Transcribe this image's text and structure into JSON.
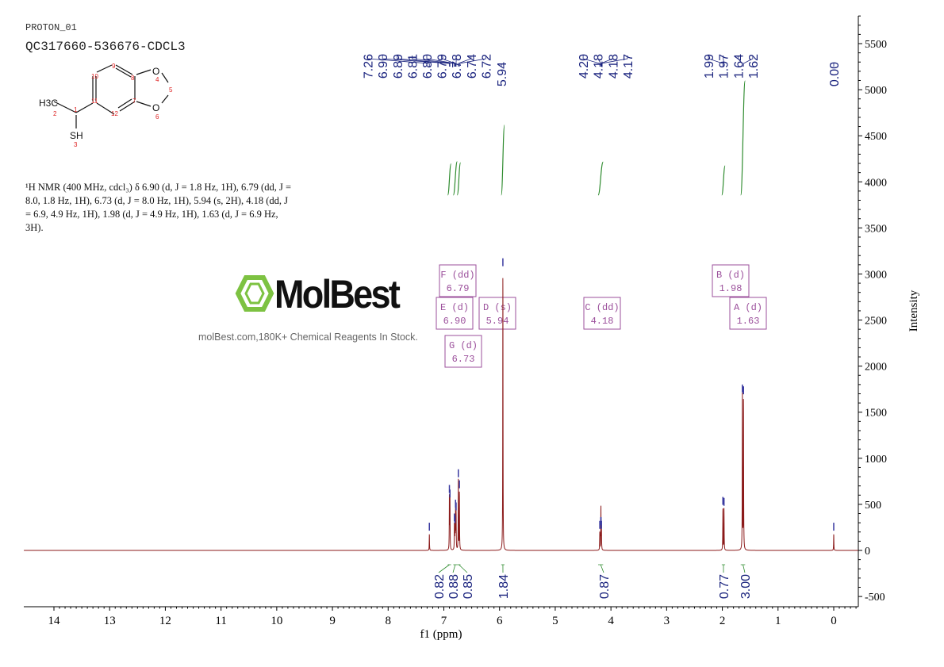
{
  "header": {
    "experiment": "PROTON_01",
    "sample": "QC317660-536676-CDCL3"
  },
  "structure": {
    "atoms": [
      "H3C",
      "2",
      "1",
      "SH",
      "3",
      "10",
      "9",
      "8",
      "11",
      "12",
      "7",
      "O",
      "4",
      "5",
      "O",
      "6"
    ]
  },
  "description": "¹H NMR (400 MHz, cdcl₃) δ 6.90 (d, J = 1.8 Hz, 1H), 6.79 (dd, J = 8.0, 1.8 Hz, 1H), 6.73 (d, J = 8.0 Hz, 1H), 5.94 (s, 2H), 4.18 (dd, J = 6.9, 4.9 Hz, 1H), 1.98 (d, J = 4.9 Hz, 1H), 1.63 (d, J = 6.9 Hz, 3H).",
  "watermark": {
    "logo": "MolBest",
    "tagline": "molBest.com,180K+ Chemical Reagents In Stock.",
    "color": "#7dc242"
  },
  "chart_data": {
    "type": "line",
    "xlabel": "f1 (ppm)",
    "ylabel": "Intensity",
    "xlim": [
      14.54,
      -0.44
    ],
    "ylim": [
      -600,
      5600
    ],
    "x_ticks": [
      14,
      13,
      12,
      11,
      10,
      9,
      8,
      7,
      6,
      5,
      4,
      3,
      2,
      1,
      0
    ],
    "y_ticks": [
      -500,
      0,
      500,
      1000,
      1500,
      2000,
      2500,
      3000,
      3500,
      4000,
      4500,
      5000,
      5500
    ],
    "line_color": "#8b1a1a",
    "peaks": [
      {
        "ppm": 7.26,
        "intensity": 180
      },
      {
        "ppm": 6.9,
        "intensity": 590
      },
      {
        "ppm": 6.89,
        "intensity": 540
      },
      {
        "ppm": 6.81,
        "intensity": 280
      },
      {
        "ppm": 6.8,
        "intensity": 260
      },
      {
        "ppm": 6.79,
        "intensity": 430
      },
      {
        "ppm": 6.78,
        "intensity": 400
      },
      {
        "ppm": 6.74,
        "intensity": 760
      },
      {
        "ppm": 6.72,
        "intensity": 640
      },
      {
        "ppm": 5.94,
        "intensity": 3050
      },
      {
        "ppm": 4.2,
        "intensity": 200
      },
      {
        "ppm": 4.18,
        "intensity": 240
      },
      {
        "ppm": 4.18,
        "intensity": 240
      },
      {
        "ppm": 4.17,
        "intensity": 200
      },
      {
        "ppm": 1.99,
        "intensity": 460
      },
      {
        "ppm": 1.97,
        "intensity": 450
      },
      {
        "ppm": 1.64,
        "intensity": 1680
      },
      {
        "ppm": 1.62,
        "intensity": 1660
      },
      {
        "ppm": 0.0,
        "intensity": 180
      }
    ],
    "peak_labels": [
      {
        "group": [
          7.26,
          6.9,
          6.89,
          6.81,
          6.8,
          6.79,
          6.78,
          6.74,
          6.72
        ],
        "labels": [
          "7.26",
          "6.90",
          "6.89",
          "6.81",
          "6.80",
          "6.79",
          "6.78",
          "6.74",
          "6.72"
        ]
      },
      {
        "group": [
          5.94
        ],
        "labels": [
          "5.94"
        ]
      },
      {
        "group": [
          4.2,
          4.18,
          4.18,
          4.17
        ],
        "labels": [
          "4.20",
          "4.18",
          "4.18",
          "4.17"
        ]
      },
      {
        "group": [
          1.99,
          1.97,
          1.64,
          1.62
        ],
        "labels": [
          "1.99",
          "1.97",
          "1.64",
          "1.62"
        ]
      },
      {
        "group": [
          0.0
        ],
        "labels": [
          "0.00"
        ]
      }
    ],
    "integrals": [
      {
        "from": 6.93,
        "to": 6.87,
        "value": "0.82"
      },
      {
        "from": 6.83,
        "to": 6.76,
        "value": "0.88"
      },
      {
        "from": 6.76,
        "to": 6.7,
        "value": "0.85"
      },
      {
        "from": 5.97,
        "to": 5.91,
        "value": "1.84"
      },
      {
        "from": 4.23,
        "to": 4.14,
        "value": "0.87"
      },
      {
        "from": 2.01,
        "to": 1.95,
        "value": "0.77"
      },
      {
        "from": 1.67,
        "to": 1.59,
        "value": "3.00"
      }
    ],
    "integral_color": "#2e8b2e",
    "multiplets": [
      {
        "id": "F",
        "type": "dd",
        "shift": "6.79"
      },
      {
        "id": "E",
        "type": "d",
        "shift": "6.90"
      },
      {
        "id": "D",
        "type": "s",
        "shift": "5.94"
      },
      {
        "id": "G",
        "type": "d",
        "shift": "6.73"
      },
      {
        "id": "C",
        "type": "dd",
        "shift": "4.18"
      },
      {
        "id": "B",
        "type": "d",
        "shift": "1.98"
      },
      {
        "id": "A",
        "type": "d",
        "shift": "1.63"
      }
    ],
    "multiplet_color": "#9b4f9b",
    "label_color": "#1a237e"
  }
}
